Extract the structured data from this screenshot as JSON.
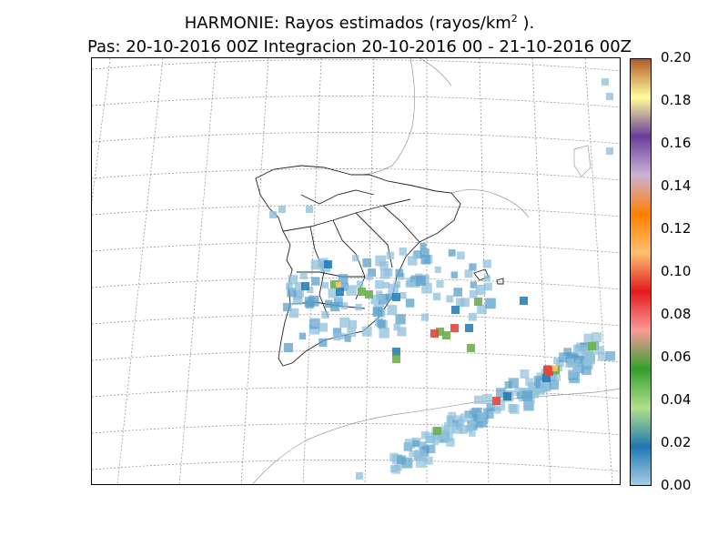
{
  "title": {
    "line1_prefix": "HARMONIE: Rayos estimados  (rayos/km",
    "line1_sup": "2",
    "line1_suffix": " ).",
    "line2": "Pas: 20-10-2016 00Z Integracion 20-10-2016 00 - 21-10-2016 00Z"
  },
  "colorbar": {
    "min": 0.0,
    "max": 0.2,
    "ticks": [
      "0.00",
      "0.02",
      "0.04",
      "0.06",
      "0.08",
      "0.10",
      "0.12",
      "0.14",
      "0.16",
      "0.18",
      "0.20"
    ],
    "colors": [
      "#a6cee3",
      "#1f78b4",
      "#b2df8a",
      "#33a02c",
      "#fb9a99",
      "#e31a1c",
      "#fdbf6f",
      "#ff7f00",
      "#cab2d6",
      "#6a3d9a",
      "#ffff99",
      "#b15928"
    ]
  },
  "map": {
    "region": "Iberian Peninsula",
    "grid": "dotted graticule",
    "field": "lightning strike density"
  }
}
